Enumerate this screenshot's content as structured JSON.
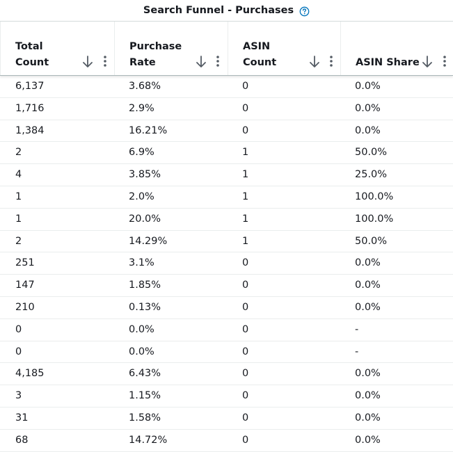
{
  "table": {
    "group_title": "Search Funnel - Purchases",
    "columns": [
      {
        "label_lines": [
          "Total",
          "Count"
        ]
      },
      {
        "label_lines": [
          "Purchase",
          "Rate"
        ]
      },
      {
        "label_lines": [
          "ASIN",
          "Count"
        ]
      },
      {
        "label_lines": [
          "ASIN Share"
        ]
      }
    ],
    "rows": [
      [
        "6,137",
        "3.68%",
        "0",
        "0.0%"
      ],
      [
        "1,716",
        "2.9%",
        "0",
        "0.0%"
      ],
      [
        "1,384",
        "16.21%",
        "0",
        "0.0%"
      ],
      [
        "2",
        "6.9%",
        "1",
        "50.0%"
      ],
      [
        "4",
        "3.85%",
        "1",
        "25.0%"
      ],
      [
        "1",
        "2.0%",
        "1",
        "100.0%"
      ],
      [
        "1",
        "20.0%",
        "1",
        "100.0%"
      ],
      [
        "2",
        "14.29%",
        "1",
        "50.0%"
      ],
      [
        "251",
        "3.1%",
        "0",
        "0.0%"
      ],
      [
        "147",
        "1.85%",
        "0",
        "0.0%"
      ],
      [
        "210",
        "0.13%",
        "0",
        "0.0%"
      ],
      [
        "0",
        "0.0%",
        "0",
        "-"
      ],
      [
        "0",
        "0.0%",
        "0",
        "-"
      ],
      [
        "4,185",
        "6.43%",
        "0",
        "0.0%"
      ],
      [
        "3",
        "1.15%",
        "0",
        "0.0%"
      ],
      [
        "31",
        "1.58%",
        "0",
        "0.0%"
      ],
      [
        "68",
        "14.72%",
        "0",
        "0.0%"
      ]
    ]
  },
  "icons": {
    "help": "question-circle-icon",
    "sort": "arrow-down-icon",
    "menu": "vertical-dots-icon"
  },
  "colors": {
    "text": "#16191f",
    "icon": "#545b64",
    "help_icon": "#0073bb",
    "border": "#eaeded"
  }
}
